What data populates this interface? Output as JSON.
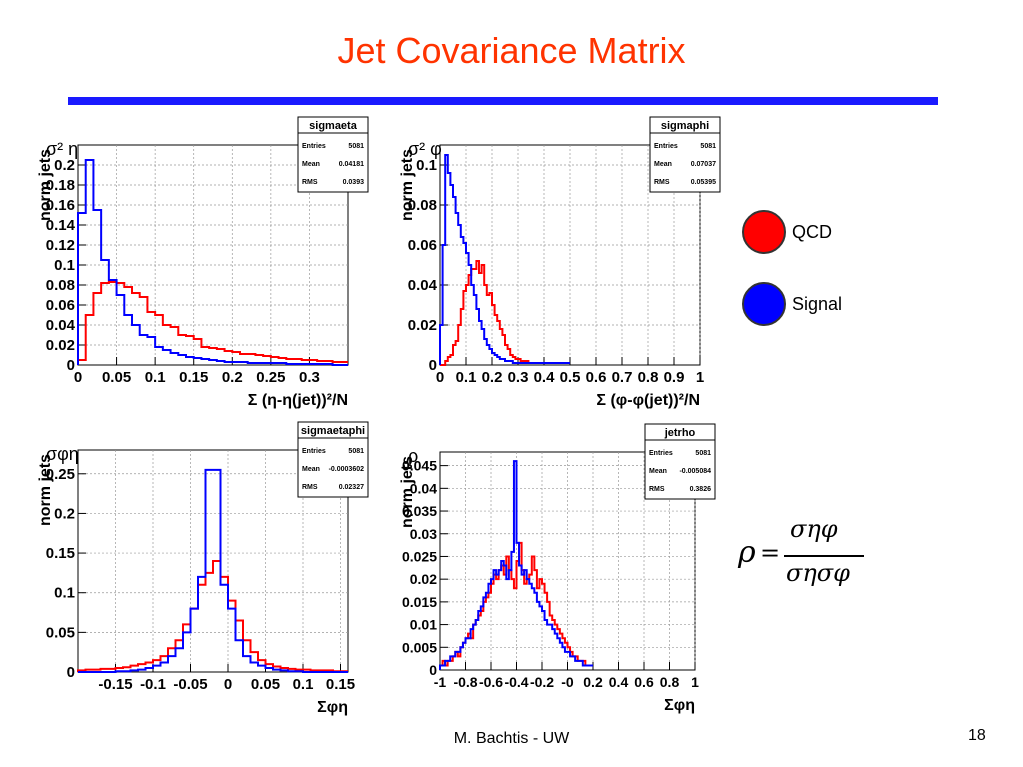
{
  "slide": {
    "title": "Jet Covariance Matrix",
    "footer": "M. Bachtis - UW",
    "page_number": "18",
    "formula": {
      "lhs": "ρ",
      "eq": "=",
      "num": "σηφ",
      "den": "σησφ"
    }
  },
  "legend": [
    {
      "label": "QCD",
      "color": "#ff0000"
    },
    {
      "label": "Signal",
      "color": "#0000ff"
    }
  ],
  "chart_data": [
    {
      "type": "line",
      "name": "sigmaeta",
      "corner_label": "σ² η",
      "xlabel": "Σ (η-η(jet))²/N",
      "ylabel": "norm jets",
      "xlim": [
        0,
        0.35
      ],
      "ylim": [
        0,
        0.22
      ],
      "xticks": [
        "0",
        "0.05",
        "0.1",
        "0.15",
        "0.2",
        "0.25",
        "0.3"
      ],
      "yticks": [
        "0",
        "0.02",
        "0.04",
        "0.06",
        "0.08",
        "0.1",
        "0.12",
        "0.14",
        "0.16",
        "0.18",
        "0.2"
      ],
      "stats": {
        "title": "sigmaeta",
        "rows": [
          [
            "Entries",
            "5081"
          ],
          [
            "Mean",
            "0.04181"
          ],
          [
            "RMS",
            "0.0393"
          ]
        ]
      },
      "series": [
        {
          "color": "#ff0000",
          "x0": 0,
          "dx": 0.01,
          "values": [
            0.005,
            0.05,
            0.072,
            0.082,
            0.083,
            0.082,
            0.078,
            0.072,
            0.068,
            0.053,
            0.05,
            0.04,
            0.038,
            0.03,
            0.029,
            0.026,
            0.018,
            0.017,
            0.016,
            0.014,
            0.013,
            0.011,
            0.011,
            0.01,
            0.009,
            0.008,
            0.007,
            0.006,
            0.006,
            0.005,
            0.005,
            0.004,
            0.004,
            0.003,
            0.003
          ]
        },
        {
          "color": "#0000ff",
          "x0": 0,
          "dx": 0.01,
          "values": [
            0.152,
            0.205,
            0.155,
            0.105,
            0.085,
            0.07,
            0.05,
            0.04,
            0.03,
            0.028,
            0.018,
            0.015,
            0.012,
            0.01,
            0.008,
            0.007,
            0.006,
            0.005,
            0.004,
            0.003,
            0.003,
            0.003,
            0.002,
            0.002,
            0.002,
            0.002,
            0.002,
            0.001,
            0.001,
            0.001,
            0.001,
            0.001,
            0.001,
            0,
            0
          ]
        }
      ]
    },
    {
      "type": "line",
      "name": "sigmaphi",
      "corner_label": "σ² φ",
      "xlabel": "Σ (φ-φ(jet))²/N",
      "ylabel": "norm jets",
      "xlim": [
        0,
        1
      ],
      "ylim": [
        0,
        0.11
      ],
      "xticks": [
        "0",
        "0.1",
        "0.2",
        "0.3",
        "0.4",
        "0.5",
        "0.6",
        "0.7",
        "0.8",
        "0.9",
        "1"
      ],
      "yticks": [
        "0",
        "0.02",
        "0.04",
        "0.06",
        "0.08",
        "0.1"
      ],
      "stats": {
        "title": "sigmaphi",
        "rows": [
          [
            "Entries",
            "5081"
          ],
          [
            "Mean",
            "0.07037"
          ],
          [
            "RMS",
            "0.05395"
          ]
        ]
      },
      "series": [
        {
          "color": "#ff0000",
          "x0": 0,
          "dx": 0.01,
          "values": [
            0,
            0,
            0.002,
            0.004,
            0.005,
            0.01,
            0.012,
            0.02,
            0.028,
            0.037,
            0.04,
            0.045,
            0.048,
            0.048,
            0.052,
            0.046,
            0.05,
            0.04,
            0.035,
            0.036,
            0.03,
            0.025,
            0.022,
            0.018,
            0.015,
            0.01,
            0.008,
            0.005,
            0.004,
            0.003,
            0.003,
            0.002,
            0.002,
            0.002,
            0.001,
            0.001,
            0.001,
            0.001,
            0.001,
            0.001,
            0.001,
            0.001,
            0.001,
            0.001,
            0.001,
            0.001,
            0.001,
            0.001,
            0.001,
            0.001
          ]
        },
        {
          "color": "#0000ff",
          "x0": 0,
          "dx": 0.01,
          "values": [
            0.02,
            0.06,
            0.105,
            0.096,
            0.09,
            0.084,
            0.076,
            0.07,
            0.064,
            0.061,
            0.056,
            0.05,
            0.04,
            0.035,
            0.028,
            0.022,
            0.018,
            0.013,
            0.01,
            0.008,
            0.006,
            0.005,
            0.004,
            0.003,
            0.003,
            0.002,
            0.002,
            0.002,
            0.001,
            0.001,
            0.001,
            0.001,
            0.001,
            0.001,
            0.001,
            0.001,
            0.001,
            0.001,
            0.001,
            0.001,
            0.001,
            0.001,
            0.001,
            0.001,
            0.001,
            0.001,
            0.001,
            0.001,
            0.001,
            0.001
          ]
        }
      ]
    },
    {
      "type": "line",
      "name": "sigmaetaphi",
      "corner_label": "σφη",
      "xlabel": "Σφη",
      "ylabel": "norm jets",
      "xlim": [
        -0.2,
        0.16
      ],
      "ylim": [
        0,
        0.28
      ],
      "xticks": [
        "-0.15",
        "-0.1",
        "-0.05",
        "0",
        "0.05",
        "0.1",
        "0.15"
      ],
      "yticks": [
        "0",
        "0.05",
        "0.1",
        "0.15",
        "0.2",
        "0.25"
      ],
      "stats": {
        "title": "sigmaetaphi",
        "rows": [
          [
            "Entries",
            "5081"
          ],
          [
            "Mean",
            "-0.0003602"
          ],
          [
            "RMS",
            "0.02327"
          ]
        ]
      },
      "series": [
        {
          "color": "#ff0000",
          "x0": -0.2,
          "dx": 0.01,
          "values": [
            0.002,
            0.003,
            0.003,
            0.004,
            0.004,
            0.005,
            0.006,
            0.008,
            0.01,
            0.012,
            0.015,
            0.02,
            0.03,
            0.04,
            0.06,
            0.08,
            0.11,
            0.125,
            0.14,
            0.12,
            0.09,
            0.065,
            0.04,
            0.025,
            0.015,
            0.01,
            0.007,
            0.005,
            0.004,
            0.003,
            0.003,
            0.002,
            0.002,
            0.002,
            0.001,
            0.001
          ]
        },
        {
          "color": "#0000ff",
          "x0": -0.2,
          "dx": 0.01,
          "values": [
            0,
            0,
            0,
            0,
            0,
            0.001,
            0.001,
            0.002,
            0.003,
            0.005,
            0.008,
            0.012,
            0.02,
            0.03,
            0.05,
            0.08,
            0.12,
            0.255,
            0.255,
            0.11,
            0.08,
            0.04,
            0.02,
            0.012,
            0.008,
            0.005,
            0.003,
            0.002,
            0.001,
            0.001,
            0,
            0,
            0,
            0,
            0,
            0
          ]
        }
      ]
    },
    {
      "type": "line",
      "name": "jetrho",
      "corner_label": "ρ",
      "xlabel": "Σφη",
      "ylabel": "norm jets",
      "xlim": [
        -1,
        1
      ],
      "ylim": [
        0,
        0.048
      ],
      "xticks": [
        "-1",
        "-0.8",
        "-0.6",
        "-0.4",
        "-0.2",
        "-0",
        "0.2",
        "0.4",
        "0.6",
        "0.8",
        "1"
      ],
      "yticks": [
        "0",
        "0.005",
        "0.01",
        "0.015",
        "0.02",
        "0.025",
        "0.03",
        "0.035",
        "0.04",
        "0.045"
      ],
      "stats": {
        "title": "jetrho",
        "rows": [
          [
            "Entries",
            "5081"
          ],
          [
            "Mean",
            "-0.005084"
          ],
          [
            "RMS",
            "0.3826"
          ]
        ]
      },
      "series": [
        {
          "color": "#ff0000",
          "x0": -1,
          "dx": 0.02,
          "values": [
            0.001,
            0.002,
            0.001,
            0.002,
            0.002,
            0.003,
            0.004,
            0.003,
            0.005,
            0.006,
            0.007,
            0.008,
            0.007,
            0.01,
            0.011,
            0.012,
            0.013,
            0.015,
            0.016,
            0.017,
            0.019,
            0.021,
            0.02,
            0.022,
            0.023,
            0.021,
            0.025,
            0.022,
            0.02,
            0.018,
            0.024,
            0.028,
            0.022,
            0.019,
            0.02,
            0.021,
            0.025,
            0.022,
            0.018,
            0.02,
            0.019,
            0.017,
            0.015,
            0.012,
            0.011,
            0.01,
            0.009,
            0.008,
            0.007,
            0.006,
            0.005,
            0.004,
            0.003,
            0.003,
            0.002,
            0.002,
            0.002,
            0.001,
            0.001,
            0.001
          ]
        },
        {
          "color": "#0000ff",
          "x0": -1,
          "dx": 0.02,
          "values": [
            0.001,
            0.001,
            0.002,
            0.002,
            0.003,
            0.003,
            0.004,
            0.004,
            0.005,
            0.006,
            0.007,
            0.007,
            0.009,
            0.01,
            0.011,
            0.013,
            0.014,
            0.016,
            0.017,
            0.019,
            0.02,
            0.022,
            0.021,
            0.022,
            0.024,
            0.023,
            0.02,
            0.022,
            0.026,
            0.046,
            0.028,
            0.023,
            0.021,
            0.022,
            0.02,
            0.019,
            0.018,
            0.017,
            0.015,
            0.014,
            0.013,
            0.011,
            0.01,
            0.01,
            0.009,
            0.008,
            0.007,
            0.006,
            0.005,
            0.004,
            0.004,
            0.003,
            0.003,
            0.002,
            0.002,
            0.002,
            0.001,
            0.001,
            0.001,
            0.001
          ]
        }
      ]
    }
  ]
}
